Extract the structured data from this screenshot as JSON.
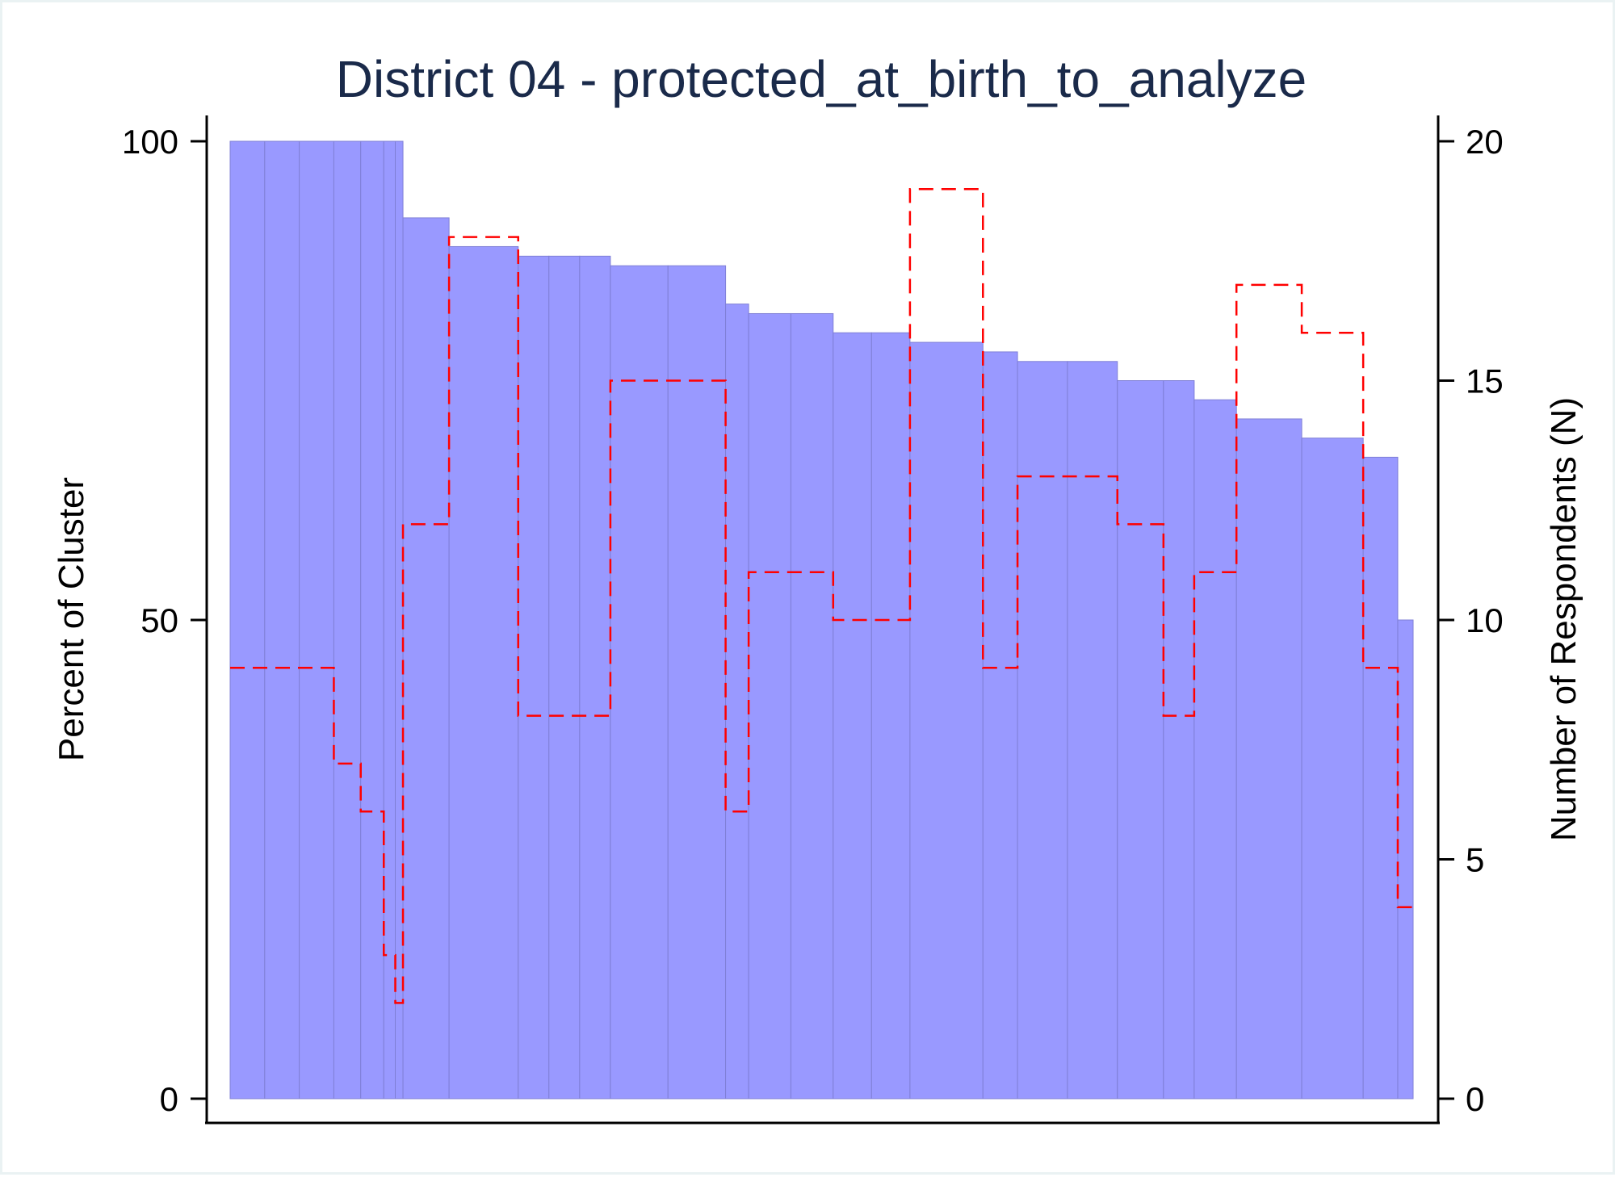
{
  "chart_data": {
    "type": "bar",
    "title": "District 04 - protected_at_birth_to_analyze",
    "xlabel": "",
    "ylabel": "Percent of Cluster",
    "y2label": "Number of Respondents (N)",
    "ylim": [
      0,
      100
    ],
    "y2lim": [
      0,
      20
    ],
    "yticks": [
      "0",
      "50",
      "100"
    ],
    "y2ticks": [
      "0",
      "5",
      "10",
      "15",
      "20"
    ],
    "grid": false,
    "bar_color": "#9999ff",
    "line_color": "#ff0000",
    "series": [
      {
        "kind": "bar",
        "axis": "left",
        "widths": [
          9,
          9,
          9,
          7,
          6,
          3,
          2,
          12,
          18,
          8,
          8,
          8,
          15,
          15,
          6,
          11,
          11,
          10,
          10,
          19,
          9,
          13,
          13,
          12,
          8,
          11,
          17,
          16,
          9,
          4
        ],
        "values": [
          100,
          100,
          100,
          100,
          100,
          100,
          100,
          92,
          89,
          88,
          88,
          88,
          87,
          87,
          83,
          82,
          82,
          80,
          80,
          79,
          78,
          77,
          77,
          75,
          75,
          73,
          71,
          69,
          67,
          50
        ]
      },
      {
        "kind": "step-line",
        "axis": "right",
        "style": "dashed",
        "values": [
          9,
          9,
          9,
          7,
          6,
          3,
          2,
          12,
          18,
          8,
          8,
          8,
          15,
          15,
          6,
          11,
          11,
          10,
          10,
          19,
          9,
          13,
          13,
          12,
          8,
          11,
          17,
          16,
          9,
          4
        ]
      }
    ]
  }
}
